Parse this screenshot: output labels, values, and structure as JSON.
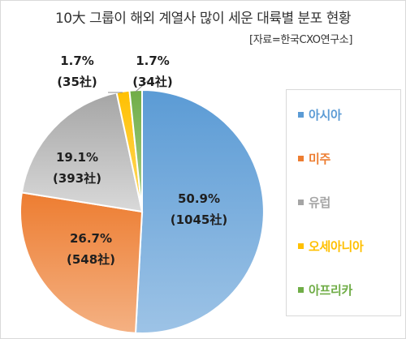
{
  "header": {
    "title": "10大 그룹이 해외 계열사 많이 세운 대륙별 분포 현황",
    "source": "[자료=한국CXO연구소]"
  },
  "chart_data": {
    "type": "pie",
    "series": [
      {
        "name": "아시아",
        "value": 1045,
        "percent_label": "50.9%",
        "count_label": "(1045社)",
        "color": "#5b9bd5",
        "color_light": "#9dc3e6"
      },
      {
        "name": "미주",
        "value": 548,
        "percent_label": "26.7%",
        "count_label": "(548社)",
        "color": "#ed7d31",
        "color_light": "#f4b183"
      },
      {
        "name": "유럽",
        "value": 393,
        "percent_label": "19.1%",
        "count_label": "(393社)",
        "color": "#a5a5a5",
        "color_light": "#d9d9d9"
      },
      {
        "name": "오세아니아",
        "value": 35,
        "percent_label": "1.7%",
        "count_label": "(35社)",
        "color": "#ffc000",
        "color_light": "#ffd966"
      },
      {
        "name": "아프리카",
        "value": 34,
        "percent_label": "1.7%",
        "count_label": "(34社)",
        "color": "#70ad47",
        "color_light": "#a9d18e"
      }
    ],
    "legend_position": "right",
    "label_text_color": "#1f1f1f"
  }
}
